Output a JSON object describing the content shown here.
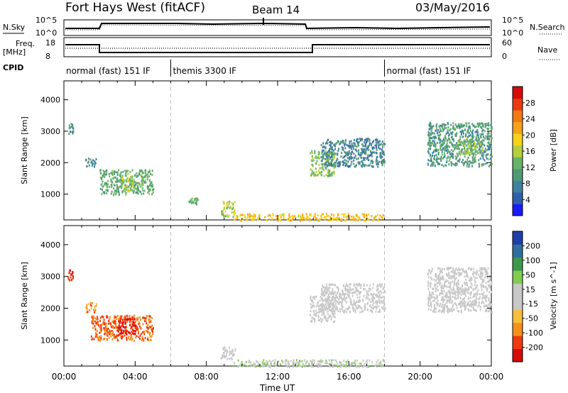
{
  "header": {
    "title": "Fort Hays West (fitACF)",
    "beam": "Beam 14",
    "date": "03/May/2016"
  },
  "strips": {
    "nsky_label": "N.Sky",
    "nsky_ticks": [
      "10^5",
      "10^0"
    ],
    "nsearch_label": "N.Search",
    "nsearch_ticks": [
      "10^5",
      "10^0"
    ],
    "freq_label": "Freq.",
    "freq_unit": "[MHz]",
    "freq_ticks": [
      "18",
      "8"
    ],
    "nave_label": "Nave",
    "nave_ticks": [
      "60",
      "0"
    ],
    "cpid_label": "CPID"
  },
  "cpid_segments": [
    {
      "label": "normal (fast) 151 IF",
      "start": 0,
      "end": 6
    },
    {
      "label": "themis 3300 IF",
      "start": 6,
      "end": 18
    },
    {
      "label": "normal (fast) 151 IF",
      "start": 18,
      "end": 24
    }
  ],
  "x_axis": {
    "label": "Time UT",
    "ticks": [
      "00:00",
      "04:00",
      "08:00",
      "12:00",
      "16:00",
      "20:00",
      "00:00"
    ],
    "range_hours": [
      0,
      24
    ]
  },
  "y_axis": {
    "label": "Slant Range [km]",
    "ticks": [
      "1000",
      "2000",
      "3000",
      "4000"
    ],
    "range_km": [
      180,
      4600
    ]
  },
  "colors": {
    "power_scale": [
      "#1a1aff",
      "#2f5fa8",
      "#3f7f9f",
      "#4f9a74",
      "#67b36a",
      "#b5cf3a",
      "#f6d21b",
      "#f6a21b",
      "#f27a12",
      "#e83a0f",
      "#d60a0a"
    ],
    "velocity_scale": [
      "#d60a0a",
      "#ee3a10",
      "#f6901d",
      "#f6be3a",
      "#c8c8c8",
      "#c8c8c8",
      "#80cc50",
      "#3b9a4a",
      "#2f6f9f",
      "#1e3fa8"
    ]
  },
  "chart_data": [
    {
      "type": "heatmap",
      "title": "",
      "parameter": "Power",
      "colorbar_label": "Power [dB]",
      "colorbar_ticks": [
        "4",
        "8",
        "12",
        "16",
        "20",
        "24",
        "28"
      ],
      "colorbar_range": [
        0,
        32
      ],
      "xlabel": "",
      "ylabel": "Slant Range [km]",
      "x_range_hours": [
        0,
        24
      ],
      "y_range_km": [
        180,
        4600
      ],
      "patches": [
        {
          "t_start": 0.2,
          "t_end": 0.5,
          "r_min": 2900,
          "r_max": 3300,
          "value": 10
        },
        {
          "t_start": 1.2,
          "t_end": 1.8,
          "r_min": 1900,
          "r_max": 2200,
          "value": 8
        },
        {
          "t_start": 2.0,
          "t_end": 5.0,
          "r_min": 1000,
          "r_max": 1800,
          "value": 12
        },
        {
          "t_start": 3.2,
          "t_end": 3.9,
          "r_min": 1100,
          "r_max": 1650,
          "value": 16
        },
        {
          "t_start": 7.0,
          "t_end": 7.5,
          "r_min": 700,
          "r_max": 900,
          "value": 12
        },
        {
          "t_start": 8.8,
          "t_end": 9.6,
          "r_min": 300,
          "r_max": 800,
          "value": 16
        },
        {
          "t_start": 9.5,
          "t_end": 17.9,
          "r_min": 180,
          "r_max": 400,
          "value": 20
        },
        {
          "t_start": 13.8,
          "t_end": 15.2,
          "r_min": 1600,
          "r_max": 2400,
          "value": 14
        },
        {
          "t_start": 14.4,
          "t_end": 18.0,
          "r_min": 1900,
          "r_max": 2800,
          "value": 8
        },
        {
          "t_start": 20.4,
          "t_end": 24.0,
          "r_min": 1900,
          "r_max": 3300,
          "value": 10
        },
        {
          "t_start": 22.0,
          "t_end": 23.5,
          "r_min": 2300,
          "r_max": 2800,
          "value": 14
        }
      ]
    },
    {
      "type": "heatmap",
      "title": "",
      "parameter": "Velocity",
      "colorbar_label": "Velocity [m s^-1]",
      "colorbar_ticks": [
        "200",
        "100",
        "50",
        "15",
        "-15",
        "-50",
        "-100",
        "-200"
      ],
      "colorbar_range": [
        -250,
        250
      ],
      "xlabel": "Time UT",
      "ylabel": "Slant Range [km]",
      "x_range_hours": [
        0,
        24
      ],
      "y_range_km": [
        180,
        4600
      ],
      "patches": [
        {
          "t_start": 0.2,
          "t_end": 0.5,
          "r_min": 2900,
          "r_max": 3300,
          "value": -200
        },
        {
          "t_start": 1.2,
          "t_end": 1.8,
          "r_min": 1900,
          "r_max": 2200,
          "value": -120
        },
        {
          "t_start": 1.5,
          "t_end": 5.0,
          "r_min": 1000,
          "r_max": 1800,
          "value": -150
        },
        {
          "t_start": 3.0,
          "t_end": 4.0,
          "r_min": 1200,
          "r_max": 1700,
          "value": -220
        },
        {
          "t_start": 8.8,
          "t_end": 9.6,
          "r_min": 400,
          "r_max": 800,
          "value": 0
        },
        {
          "t_start": 9.5,
          "t_end": 17.9,
          "r_min": 180,
          "r_max": 400,
          "value": 30
        },
        {
          "t_start": 13.8,
          "t_end": 15.2,
          "r_min": 1600,
          "r_max": 2400,
          "value": 0
        },
        {
          "t_start": 14.4,
          "t_end": 18.0,
          "r_min": 1900,
          "r_max": 2800,
          "value": 0
        },
        {
          "t_start": 20.4,
          "t_end": 24.0,
          "r_min": 1900,
          "r_max": 3300,
          "value": 0
        }
      ]
    }
  ]
}
